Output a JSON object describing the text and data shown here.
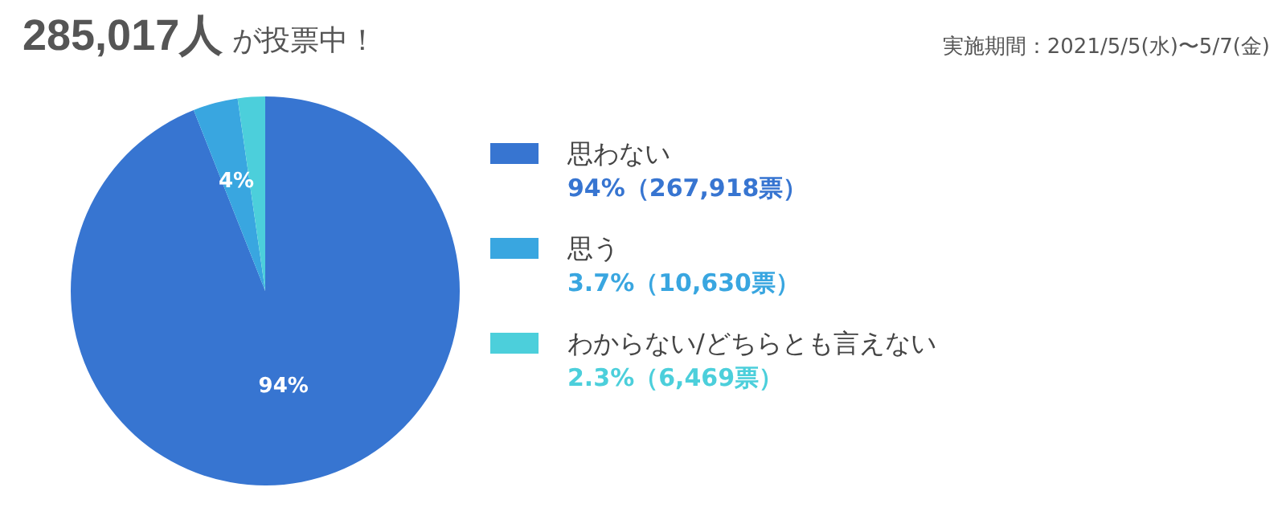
{
  "chart_data": {
    "type": "pie",
    "title": "285,017人 が投票中！",
    "subtitle": "実施期間：2021/5/5(水)〜5/7(金)",
    "categories": [
      "思わない",
      "思う",
      "わからない/どちらとも言えない"
    ],
    "values": [
      267918,
      10630,
      6469
    ],
    "colors": [
      "#3775d1",
      "#39a6e0",
      "#4ccfdb"
    ],
    "value_labels": [
      "94%（267,918票）",
      "3.7%（10,630票）",
      "2.3%（6,469票）"
    ],
    "annotations": [
      {
        "text": "94%",
        "x": "思わない"
      },
      {
        "text": "4%",
        "x": "思う"
      }
    ],
    "legend": "right"
  }
}
